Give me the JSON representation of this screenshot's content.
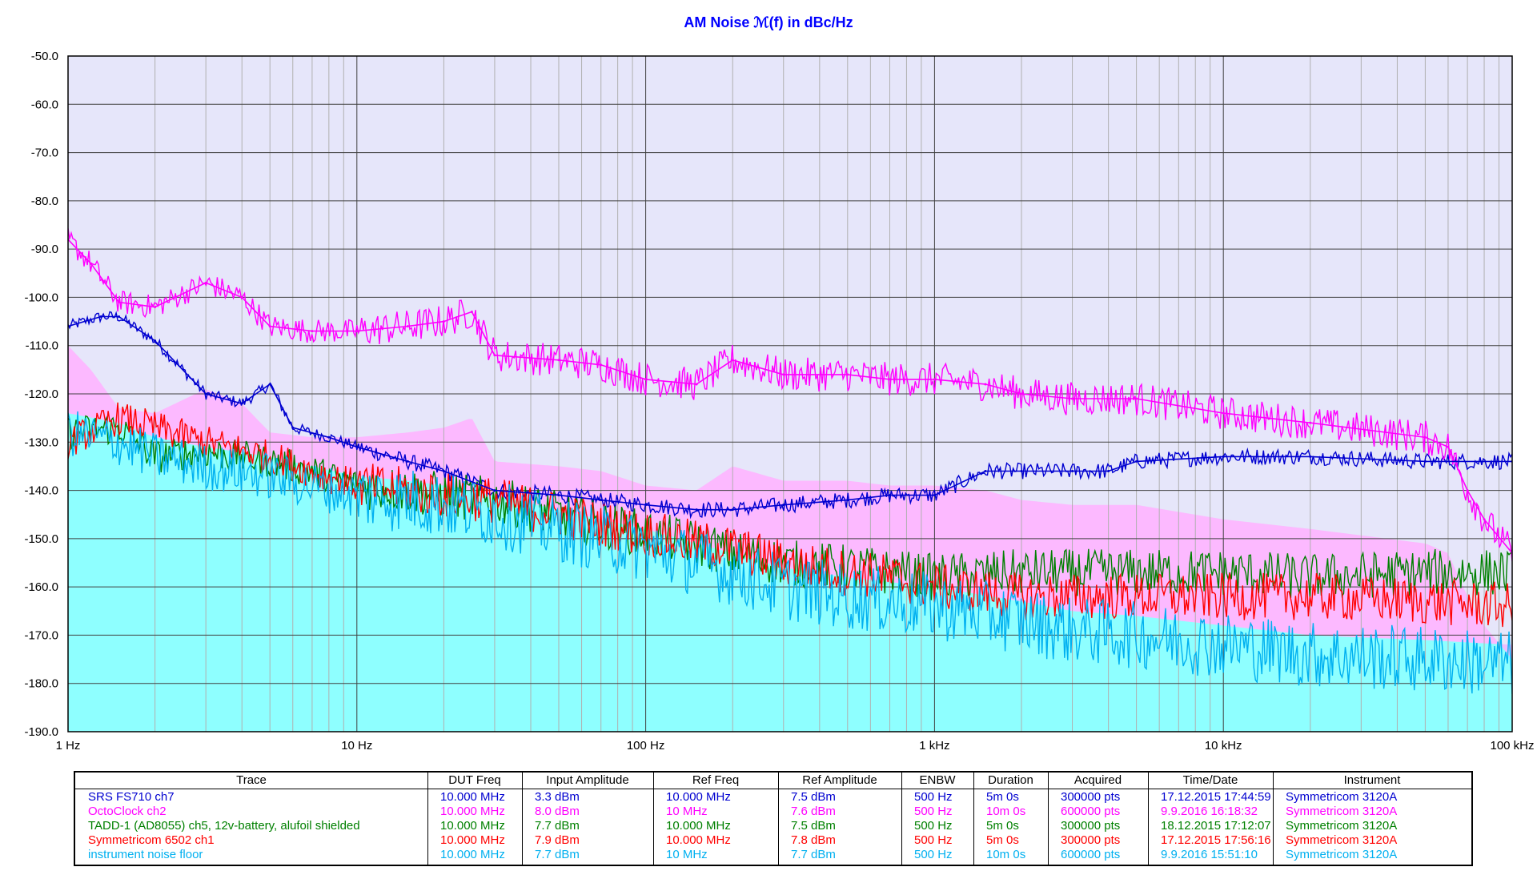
{
  "chart_data": {
    "type": "line",
    "title": "AM Noise ℳ(f) in dBc/Hz",
    "xscale": "log",
    "xlim": [
      1,
      100000
    ],
    "ylim": [
      -190,
      -50
    ],
    "grid": true,
    "x_tick_labels": [
      "1 Hz",
      "10 Hz",
      "100 Hz",
      "1 kHz",
      "10 kHz",
      "100 kHz"
    ],
    "y_ticks": [
      -50,
      -60,
      -70,
      -80,
      -90,
      -100,
      -110,
      -120,
      -130,
      -140,
      -150,
      -160,
      -170,
      -180,
      -190
    ],
    "y_tick_labels": [
      "-50.0",
      "-60.0",
      "-70.0",
      "-80.0",
      "-90.0",
      "-100.0",
      "-110.0",
      "-120.0",
      "-130.0",
      "-140.0",
      "-150.0",
      "-160.0",
      "-170.0",
      "-180.0",
      "-190.0"
    ],
    "series": [
      {
        "name": "SRS FS710 ch7",
        "color": "#0000d0",
        "x": [
          1,
          1.3,
          1.5,
          2,
          3,
          4,
          5,
          6,
          8,
          10,
          15,
          20,
          30,
          50,
          70,
          100,
          150,
          200,
          300,
          500,
          700,
          1000,
          1500,
          2000,
          3000,
          4000,
          5000,
          10000,
          20000,
          50000,
          100000
        ],
        "y": [
          -106,
          -104,
          -104,
          -109,
          -120,
          -122,
          -118,
          -127,
          -129,
          -131,
          -134,
          -136,
          -140,
          -141,
          -142,
          -143,
          -144,
          -144,
          -143,
          -142,
          -141,
          -141,
          -136,
          -136,
          -136,
          -136,
          -134,
          -133,
          -133,
          -134,
          -134
        ]
      },
      {
        "name": "OctoClock ch2",
        "color": "#ff00ff",
        "x": [
          1,
          1.2,
          1.5,
          2,
          3,
          4,
          5,
          7,
          10,
          15,
          20,
          25,
          30,
          50,
          70,
          100,
          150,
          200,
          300,
          500,
          700,
          1000,
          1500,
          2000,
          3000,
          5000,
          10000,
          20000,
          50000,
          60000,
          70000,
          80000,
          100000
        ],
        "y": [
          -88,
          -93,
          -101,
          -102,
          -97,
          -100,
          -106,
          -107,
          -107,
          -106,
          -105,
          -103,
          -112,
          -113,
          -114,
          -117,
          -118,
          -113,
          -116,
          -116,
          -117,
          -117,
          -118,
          -120,
          -121,
          -121,
          -124,
          -126,
          -129,
          -131,
          -140,
          -146,
          -153
        ]
      },
      {
        "name": "TADD-1 (AD8055) ch5, 12v-battery, alufoil shielded",
        "color": "#008000",
        "x": [
          1,
          1.5,
          2,
          3,
          5,
          7,
          10,
          15,
          20,
          30,
          50,
          70,
          100,
          150,
          200,
          300,
          500,
          700,
          1000,
          2000,
          3000,
          5000,
          10000,
          20000,
          50000,
          100000
        ],
        "y": [
          -128,
          -127,
          -133,
          -132,
          -134,
          -136,
          -139,
          -140,
          -141,
          -142,
          -145,
          -147,
          -149,
          -151,
          -153,
          -155,
          -156,
          -157,
          -158,
          -157,
          -157,
          -157,
          -157,
          -158,
          -157,
          -157
        ]
      },
      {
        "name": "Symmetricom 6502 ch1",
        "color": "#ff0000",
        "x": [
          1,
          1.5,
          2,
          3,
          5,
          7,
          10,
          15,
          20,
          30,
          50,
          70,
          100,
          150,
          200,
          300,
          500,
          700,
          1000,
          2000,
          3000,
          5000,
          10000,
          20000,
          50000,
          100000
        ],
        "y": [
          -130,
          -125,
          -127,
          -130,
          -133,
          -136,
          -139,
          -140,
          -141,
          -142,
          -145,
          -147,
          -149,
          -151,
          -152,
          -155,
          -157,
          -158,
          -160,
          -162,
          -162,
          -162,
          -162,
          -162,
          -163,
          -164
        ]
      },
      {
        "name": "instrument noise floor",
        "color": "#00b0f0",
        "x": [
          1,
          1.5,
          2,
          3,
          5,
          7,
          10,
          15,
          20,
          30,
          50,
          70,
          100,
          150,
          200,
          300,
          500,
          700,
          1000,
          2000,
          3000,
          5000,
          10000,
          20000,
          50000,
          100000
        ],
        "y": [
          -128,
          -130,
          -133,
          -135,
          -137,
          -139,
          -141,
          -142,
          -143,
          -145,
          -148,
          -150,
          -152,
          -155,
          -157,
          -160,
          -162,
          -163,
          -164,
          -167,
          -169,
          -170,
          -172,
          -174,
          -175,
          -176
        ]
      }
    ]
  },
  "legend_table": {
    "headers": [
      "Trace",
      "DUT Freq",
      "Input Amplitude",
      "Ref Freq",
      "Ref Amplitude",
      "ENBW",
      "Duration",
      "Acquired",
      "Time/Date",
      "Instrument"
    ],
    "rows": [
      {
        "color": "#0000d0",
        "cells": [
          "SRS FS710 ch7",
          "10.000 MHz",
          "3.3 dBm",
          "10.000 MHz",
          "7.5 dBm",
          "500 Hz",
          "5m 0s",
          "300000 pts",
          "17.12.2015 17:44:59",
          "Symmetricom 3120A"
        ]
      },
      {
        "color": "#ff00ff",
        "cells": [
          "OctoClock ch2",
          "10.000 MHz",
          "8.0 dBm",
          "10 MHz",
          "7.6 dBm",
          "500 Hz",
          "10m 0s",
          "600000 pts",
          "9.9.2016 16:18:32",
          "Symmetricom 3120A"
        ]
      },
      {
        "color": "#008000",
        "cells": [
          "TADD-1 (AD8055) ch5, 12v-battery, alufoil shielded",
          "10.000 MHz",
          "7.7 dBm",
          "10.000 MHz",
          "7.5 dBm",
          "500 Hz",
          "5m 0s",
          "300000 pts",
          "18.12.2015 17:12:07",
          "Symmetricom 3120A"
        ]
      },
      {
        "color": "#ff0000",
        "cells": [
          "Symmetricom 6502 ch1",
          "10.000 MHz",
          "7.9 dBm",
          "10.000 MHz",
          "7.8 dBm",
          "500 Hz",
          "5m 0s",
          "300000 pts",
          "17.12.2015 17:56:16",
          "Symmetricom 3120A"
        ]
      },
      {
        "color": "#00b0f0",
        "cells": [
          "instrument noise floor",
          "10.000 MHz",
          "7.7 dBm",
          "10 MHz",
          "7.7 dBm",
          "500 Hz",
          "10m 0s",
          "600000 pts",
          "9.9.2016 15:51:10",
          "Symmetricom 3120A"
        ]
      }
    ]
  }
}
